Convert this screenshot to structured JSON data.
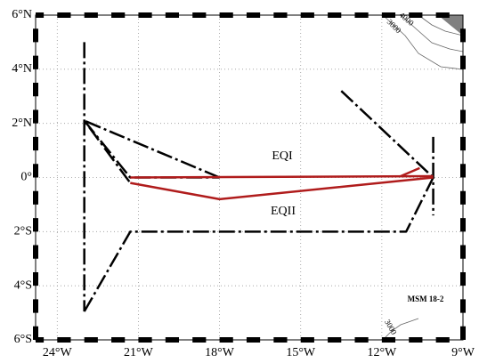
{
  "map": {
    "xlim": [
      -24.8,
      -9
    ],
    "ylim": [
      -6,
      6
    ],
    "xticks": [
      {
        "value": -24,
        "label": "24°W"
      },
      {
        "value": -21,
        "label": "21°W"
      },
      {
        "value": -18,
        "label": "18°W"
      },
      {
        "value": -15,
        "label": "15°W"
      },
      {
        "value": -12,
        "label": "12°W"
      },
      {
        "value": -9,
        "label": "9°W"
      }
    ],
    "yticks": [
      {
        "value": -6,
        "label": "6°S"
      },
      {
        "value": -4,
        "label": "4°S"
      },
      {
        "value": -2,
        "label": "2°S"
      },
      {
        "value": 0,
        "label": "0°"
      },
      {
        "value": 2,
        "label": "2°N"
      },
      {
        "value": 4,
        "label": "4°N"
      },
      {
        "value": 6,
        "label": "6°N"
      }
    ],
    "grid": true,
    "tracks": [
      {
        "color": "#000000",
        "dashed": true,
        "lon": [
          -23,
          -23
        ],
        "lat": [
          5,
          -4.95
        ]
      },
      {
        "color": "#000000",
        "dashed": true,
        "lon": [
          -23,
          -21.3,
          -18
        ],
        "lat": [
          2.1,
          0,
          0
        ]
      },
      {
        "color": "#000000",
        "dashed": true,
        "lon": [
          -18,
          -23,
          -21.3
        ],
        "lat": [
          0,
          2.1,
          -0.2
        ]
      },
      {
        "color": "#000000",
        "dashed": true,
        "lon": [
          -23,
          -21.3,
          -11.1,
          -10.1
        ],
        "lat": [
          -4.95,
          -2,
          -2,
          0
        ]
      },
      {
        "color": "#000000",
        "dashed": true,
        "lon": [
          -13.5,
          -10.1
        ],
        "lat": [
          3.2,
          0
        ]
      },
      {
        "color": "#000000",
        "dashed": true,
        "lon": [
          -10.1,
          -10.1
        ],
        "lat": [
          1.5,
          -1.4
        ]
      },
      {
        "color": "#b01c1c",
        "dashed": false,
        "lon": [
          -21.3,
          -10.1
        ],
        "lat": [
          0,
          0.05
        ]
      },
      {
        "color": "#b01c1c",
        "dashed": false,
        "lon": [
          -21.3,
          -18,
          -10.1
        ],
        "lat": [
          -0.2,
          -0.8,
          0
        ]
      },
      {
        "color": "#b01c1c",
        "dashed": false,
        "lon": [
          -11.3,
          -10.6
        ],
        "lat": [
          0.05,
          0.35
        ]
      }
    ],
    "labels": [
      "EQI",
      "EQII",
      "MSM 18-2"
    ],
    "contour_labels": [
      "3000",
      "4000",
      "3000"
    ]
  }
}
